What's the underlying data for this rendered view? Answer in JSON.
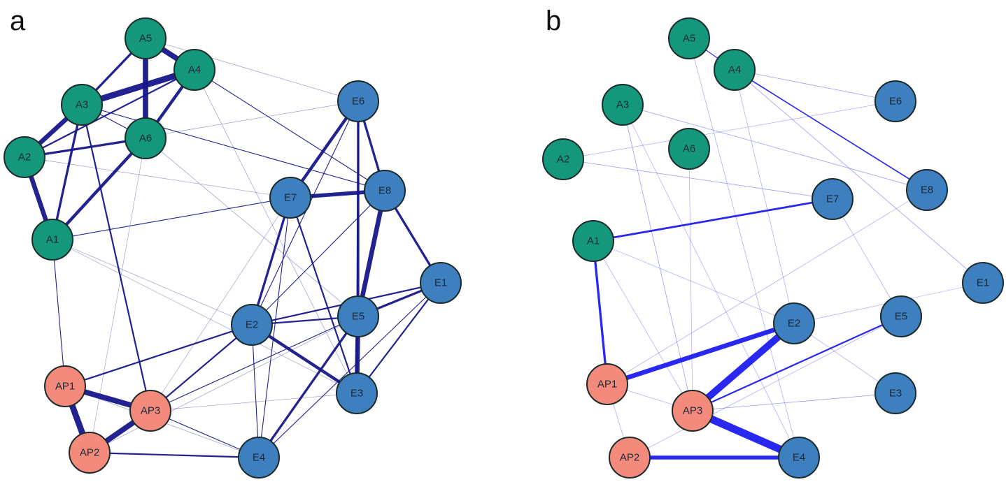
{
  "colors": {
    "A": "#14977a",
    "E": "#3d7fbf",
    "AP": "#f48a7c",
    "edge_a": "#16168a",
    "edge_b": "#1c1cf0",
    "stroke": "#1b2b2b"
  },
  "panels": [
    {
      "label": "a",
      "nodes": [
        {
          "id": "A5",
          "group": "A"
        },
        {
          "id": "A4",
          "group": "A"
        },
        {
          "id": "A3",
          "group": "A"
        },
        {
          "id": "A6",
          "group": "A"
        },
        {
          "id": "A2",
          "group": "A"
        },
        {
          "id": "A1",
          "group": "A"
        },
        {
          "id": "E6",
          "group": "E"
        },
        {
          "id": "E8",
          "group": "E"
        },
        {
          "id": "E7",
          "group": "E"
        },
        {
          "id": "E1",
          "group": "E"
        },
        {
          "id": "E5",
          "group": "E"
        },
        {
          "id": "E2",
          "group": "E"
        },
        {
          "id": "E3",
          "group": "E"
        },
        {
          "id": "E4",
          "group": "E"
        },
        {
          "id": "AP1",
          "group": "AP"
        },
        {
          "id": "AP3",
          "group": "AP"
        },
        {
          "id": "AP2",
          "group": "AP"
        }
      ],
      "edges": [
        [
          "A5",
          "A4",
          7
        ],
        [
          "A5",
          "A6",
          7
        ],
        [
          "A3",
          "A4",
          8
        ],
        [
          "A5",
          "A3",
          3
        ],
        [
          "A4",
          "A6",
          4
        ],
        [
          "A3",
          "A2",
          6
        ],
        [
          "A2",
          "A1",
          6
        ],
        [
          "A3",
          "A1",
          3
        ],
        [
          "A6",
          "A1",
          4
        ],
        [
          "A2",
          "A6",
          3
        ],
        [
          "A2",
          "A4",
          2
        ],
        [
          "A3",
          "A6",
          1
        ],
        [
          "A3",
          "AP3",
          2
        ],
        [
          "A3",
          "E8",
          1
        ],
        [
          "A4",
          "E8",
          1
        ],
        [
          "A4",
          "E3",
          0.6
        ],
        [
          "A5",
          "E6",
          0.6
        ],
        [
          "A2",
          "E6",
          0.6
        ],
        [
          "A2",
          "E7",
          0.6
        ],
        [
          "A6",
          "E5",
          0.6
        ],
        [
          "A6",
          "AP2",
          0.3
        ],
        [
          "A1",
          "E7",
          1
        ],
        [
          "A1",
          "AP1",
          1
        ],
        [
          "A1",
          "E2",
          0.6
        ],
        [
          "A1",
          "E3",
          0.4
        ],
        [
          "E6",
          "E7",
          4
        ],
        [
          "E6",
          "E8",
          3
        ],
        [
          "E6",
          "E5",
          3
        ],
        [
          "E6",
          "E3",
          2
        ],
        [
          "E6",
          "E2",
          1
        ],
        [
          "E7",
          "E8",
          5
        ],
        [
          "E8",
          "E5",
          6
        ],
        [
          "E8",
          "E1",
          3
        ],
        [
          "E7",
          "E2",
          3
        ],
        [
          "E7",
          "E3",
          2
        ],
        [
          "E7",
          "E4",
          1
        ],
        [
          "E5",
          "E3",
          6
        ],
        [
          "E2",
          "E3",
          4
        ],
        [
          "E2",
          "E5",
          2
        ],
        [
          "E2",
          "E1",
          2
        ],
        [
          "E5",
          "E1",
          3
        ],
        [
          "E1",
          "E3",
          2
        ],
        [
          "E5",
          "E4",
          3
        ],
        [
          "E8",
          "E2",
          1
        ],
        [
          "E1",
          "E4",
          1
        ],
        [
          "E2",
          "AP1",
          2
        ],
        [
          "E2",
          "AP3",
          2
        ],
        [
          "E2",
          "E4",
          1
        ],
        [
          "E5",
          "AP3",
          1
        ],
        [
          "E3",
          "AP3",
          0.6
        ],
        [
          "AP1",
          "AP2",
          8
        ],
        [
          "AP1",
          "AP3",
          7
        ],
        [
          "AP3",
          "AP2",
          7
        ],
        [
          "AP2",
          "E4",
          2
        ],
        [
          "AP3",
          "E4",
          1
        ],
        [
          "AP1",
          "E4",
          0.6
        ],
        [
          "AP2",
          "E5",
          0.6
        ],
        [
          "E7",
          "AP3",
          0.3
        ]
      ]
    },
    {
      "label": "b",
      "nodes": [
        {
          "id": "A5",
          "group": "A"
        },
        {
          "id": "A4",
          "group": "A"
        },
        {
          "id": "A3",
          "group": "A"
        },
        {
          "id": "A6",
          "group": "A"
        },
        {
          "id": "A2",
          "group": "A"
        },
        {
          "id": "A1",
          "group": "A"
        },
        {
          "id": "E6",
          "group": "E"
        },
        {
          "id": "E8",
          "group": "E"
        },
        {
          "id": "E7",
          "group": "E"
        },
        {
          "id": "E1",
          "group": "E"
        },
        {
          "id": "E5",
          "group": "E"
        },
        {
          "id": "E2",
          "group": "E"
        },
        {
          "id": "E3",
          "group": "E"
        },
        {
          "id": "E4",
          "group": "E"
        },
        {
          "id": "AP1",
          "group": "AP"
        },
        {
          "id": "AP3",
          "group": "AP"
        },
        {
          "id": "AP2",
          "group": "AP"
        }
      ],
      "edges": [
        [
          "A5",
          "A4",
          1
        ],
        [
          "A4",
          "E8",
          1.5
        ],
        [
          "A4",
          "E6",
          0.7
        ],
        [
          "A4",
          "E1",
          0.7
        ],
        [
          "A4",
          "E2",
          0.4
        ],
        [
          "A3",
          "E8",
          0.7
        ],
        [
          "A3",
          "AP3",
          0.7
        ],
        [
          "A3",
          "E4",
          0.5
        ],
        [
          "A2",
          "E7",
          0.7
        ],
        [
          "A2",
          "E6",
          0.3
        ],
        [
          "A6",
          "AP3",
          0.3
        ],
        [
          "A1",
          "E7",
          2.5
        ],
        [
          "A1",
          "AP1",
          3
        ],
        [
          "A1",
          "E2",
          0.5
        ],
        [
          "A1",
          "AP3",
          0.5
        ],
        [
          "AP1",
          "E2",
          6
        ],
        [
          "AP3",
          "E2",
          9
        ],
        [
          "AP3",
          "E5",
          2
        ],
        [
          "AP3",
          "E4",
          10
        ],
        [
          "AP2",
          "E4",
          5
        ],
        [
          "AP3",
          "E3",
          0.7
        ],
        [
          "AP1",
          "AP3",
          0.4
        ],
        [
          "AP1",
          "AP2",
          0.3
        ],
        [
          "AP2",
          "E5",
          0.4
        ],
        [
          "E2",
          "E1",
          0.3
        ],
        [
          "E2",
          "E3",
          0.4
        ],
        [
          "E7",
          "E5",
          0.3
        ],
        [
          "AP1",
          "E8",
          0.2
        ],
        [
          "A5",
          "E4",
          0.2
        ]
      ]
    }
  ]
}
